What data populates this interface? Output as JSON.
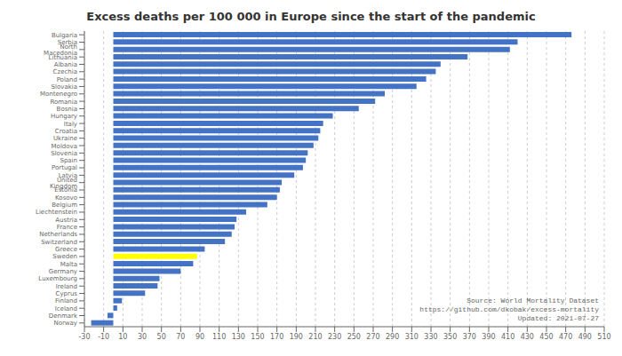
{
  "chart_data": {
    "type": "bar",
    "orientation": "horizontal",
    "title": "Excess deaths per 100 000 in Europe since the start of the pandemic",
    "categories": [
      "Bulgaria",
      "Serbia",
      "North Macedonia",
      "Lithuania",
      "Albania",
      "Czechia",
      "Poland",
      "Slovakia",
      "Montenegro",
      "Romania",
      "Bosnia",
      "Hungary",
      "Italy",
      "Croatia",
      "Ukraine",
      "Moldova",
      "Slovenia",
      "Spain",
      "Portugal",
      "Latvia",
      "United Kingdom",
      "Estonia",
      "Kosovo",
      "Belgium",
      "Liechtenstein",
      "Austria",
      "France",
      "Netherlands",
      "Switzerland",
      "Greece",
      "Sweden",
      "Malta",
      "Germany",
      "Luxembourg",
      "Ireland",
      "Cyprus",
      "Finland",
      "Iceland",
      "Denmark",
      "Norway"
    ],
    "values": [
      476,
      420,
      412,
      368,
      340,
      335,
      325,
      315,
      282,
      272,
      255,
      228,
      218,
      215,
      213,
      208,
      202,
      200,
      197,
      188,
      175,
      173,
      170,
      160,
      138,
      128,
      126,
      123,
      116,
      95,
      87,
      83,
      70,
      48,
      46,
      33,
      9,
      4,
      -6,
      -23
    ],
    "colors": [
      "#4472c4",
      "#4472c4",
      "#4472c4",
      "#4472c4",
      "#4472c4",
      "#4472c4",
      "#4472c4",
      "#4472c4",
      "#4472c4",
      "#4472c4",
      "#4472c4",
      "#4472c4",
      "#4472c4",
      "#4472c4",
      "#4472c4",
      "#4472c4",
      "#4472c4",
      "#4472c4",
      "#4472c4",
      "#4472c4",
      "#4472c4",
      "#4472c4",
      "#4472c4",
      "#4472c4",
      "#4472c4",
      "#4472c4",
      "#4472c4",
      "#4472c4",
      "#4472c4",
      "#4472c4",
      "#ffff00",
      "#4472c4",
      "#4472c4",
      "#4472c4",
      "#4472c4",
      "#4472c4",
      "#4472c4",
      "#4472c4",
      "#4472c4",
      "#4472c4"
    ],
    "xlim": [
      -30,
      510
    ],
    "xticks": [
      -30,
      -10,
      10,
      30,
      50,
      70,
      90,
      110,
      130,
      150,
      170,
      190,
      210,
      230,
      250,
      270,
      290,
      310,
      330,
      350,
      370,
      390,
      410,
      430,
      450,
      470,
      490,
      510
    ],
    "grid": true,
    "annotation": "Source: World Mortality Dataset\nhttps://github.com/dkobak/excess-mortality\nUpdated: 2021-07-27"
  }
}
